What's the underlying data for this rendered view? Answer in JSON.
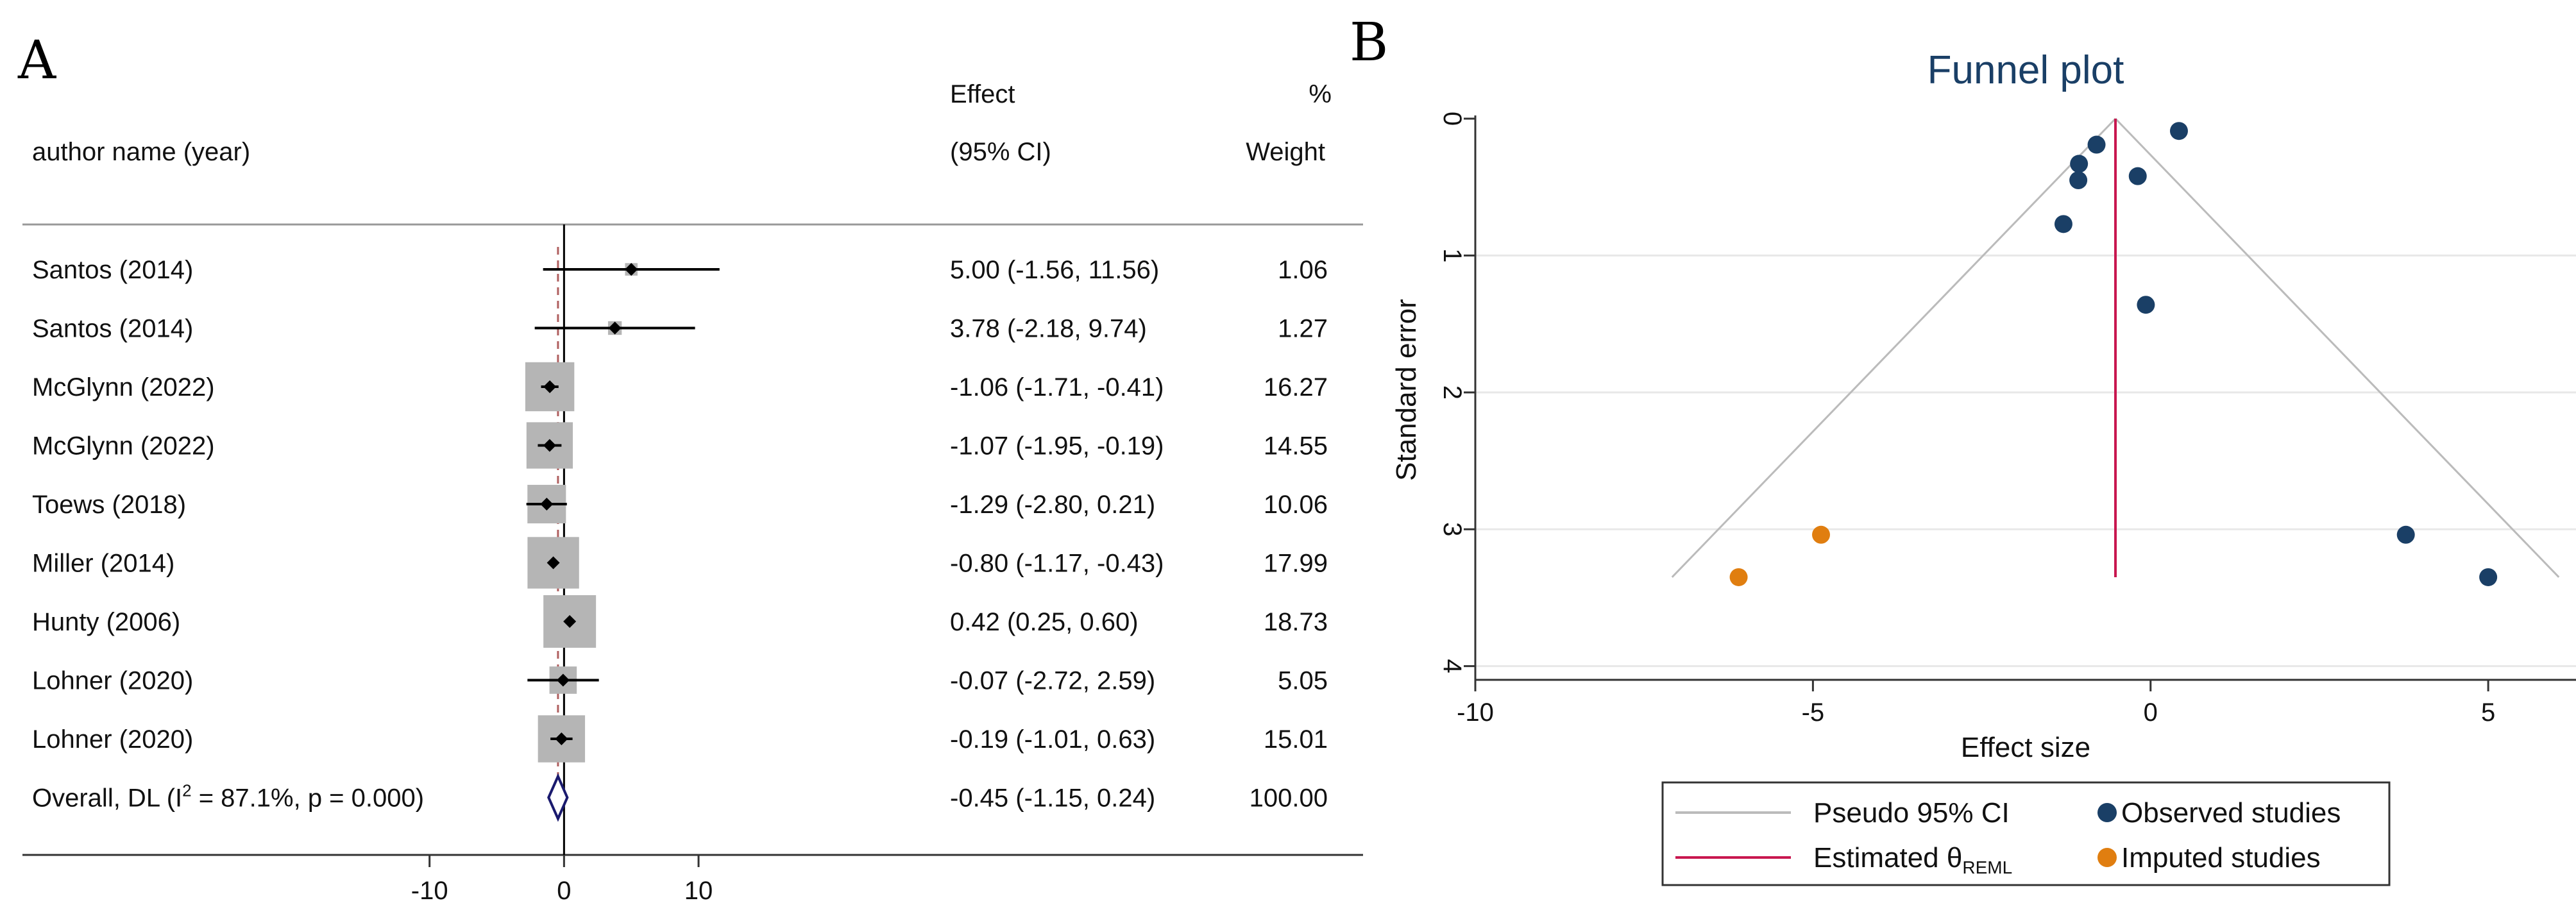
{
  "panels": {
    "a_label": "A",
    "b_label": "B"
  },
  "chart_data": [
    {
      "type": "forest",
      "title": "",
      "header": {
        "col_study": "author name (year)",
        "col_effect_1": "Effect",
        "col_effect_2": "(95% CI)",
        "col_weight_1": "%",
        "col_weight_2": "Weight"
      },
      "studies": [
        {
          "label": "Santos (2014)",
          "effect": 5.0,
          "lo": -1.56,
          "hi": 11.56,
          "ci_text": "5.00 (-1.56, 11.56)",
          "weight": 1.06,
          "weight_text": "1.06"
        },
        {
          "label": "Santos (2014)",
          "effect": 3.78,
          "lo": -2.18,
          "hi": 9.74,
          "ci_text": "3.78 (-2.18, 9.74)",
          "weight": 1.27,
          "weight_text": "1.27"
        },
        {
          "label": "McGlynn (2022)",
          "effect": -1.06,
          "lo": -1.71,
          "hi": -0.41,
          "ci_text": "-1.06 (-1.71, -0.41)",
          "weight": 16.27,
          "weight_text": "16.27"
        },
        {
          "label": "McGlynn (2022)",
          "effect": -1.07,
          "lo": -1.95,
          "hi": -0.19,
          "ci_text": "-1.07 (-1.95, -0.19)",
          "weight": 14.55,
          "weight_text": "14.55"
        },
        {
          "label": "Toews (2018)",
          "effect": -1.29,
          "lo": -2.8,
          "hi": 0.21,
          "ci_text": "-1.29 (-2.80, 0.21)",
          "weight": 10.06,
          "weight_text": "10.06"
        },
        {
          "label": "Miller (2014)",
          "effect": -0.8,
          "lo": -1.17,
          "hi": -0.43,
          "ci_text": "-0.80 (-1.17, -0.43)",
          "weight": 17.99,
          "weight_text": "17.99"
        },
        {
          "label": "Hunty (2006)",
          "effect": 0.42,
          "lo": 0.25,
          "hi": 0.6,
          "ci_text": "0.42 (0.25, 0.60)",
          "weight": 18.73,
          "weight_text": "18.73"
        },
        {
          "label": "Lohner (2020)",
          "effect": -0.07,
          "lo": -2.72,
          "hi": 2.59,
          "ci_text": "-0.07 (-2.72, 2.59)",
          "weight": 5.05,
          "weight_text": "5.05"
        },
        {
          "label": "Lohner (2020)",
          "effect": -0.19,
          "lo": -1.01,
          "hi": 0.63,
          "ci_text": "-0.19 (-1.01, 0.63)",
          "weight": 15.01,
          "weight_text": "15.01"
        }
      ],
      "overall": {
        "label_prefix": "Overall, DL (I",
        "label_sup": "2",
        "label_suffix": " = 87.1%, p = 0.000)",
        "effect": -0.45,
        "lo": -1.15,
        "hi": 0.24,
        "ci_text": "-0.45 (-1.15, 0.24)",
        "weight_text": "100.00"
      },
      "xticks": [
        -10,
        0,
        10
      ],
      "xrange": [
        -20,
        26.5
      ],
      "null_line": 0,
      "colors": {
        "box": "#b5b5b5",
        "diamond": "#1a1a6e",
        "ref": "#b06060",
        "line": "#000000"
      }
    },
    {
      "type": "scatter",
      "title": "Funnel plot",
      "xlabel": "Effect size",
      "ylabel": "Standard error",
      "xlim": [
        -10.0,
        6.3
      ],
      "ylim": [
        0,
        4.1
      ],
      "xticks": [
        -10,
        -5,
        0,
        5
      ],
      "yticks": [
        0,
        1,
        2,
        3,
        4
      ],
      "y_reversed": true,
      "estimate": -0.52,
      "funnel_extent_se": 3.35,
      "observed": [
        {
          "x": 5.0,
          "se": 3.35
        },
        {
          "x": 3.78,
          "se": 3.04
        },
        {
          "x": -1.06,
          "se": 0.33
        },
        {
          "x": -1.07,
          "se": 0.45
        },
        {
          "x": -1.29,
          "se": 0.77
        },
        {
          "x": -0.8,
          "se": 0.19
        },
        {
          "x": 0.42,
          "se": 0.09
        },
        {
          "x": -0.07,
          "se": 1.36
        },
        {
          "x": -0.19,
          "se": 0.42
        }
      ],
      "imputed": [
        {
          "x": -4.88,
          "se": 3.04
        },
        {
          "x": -6.1,
          "se": 3.35
        }
      ],
      "legend": {
        "ci_label": "Pseudo 95% CI",
        "est_label": "Estimated θ",
        "est_sub": "REML",
        "obs_label": "Observed studies",
        "imp_label": "Imputed studies"
      },
      "colors": {
        "observed": "#1a3f66",
        "imputed": "#e07e10",
        "estimate": "#c8174f",
        "pseudo_ci": "#bbbbbb",
        "title": "#1a3f66"
      }
    }
  ]
}
